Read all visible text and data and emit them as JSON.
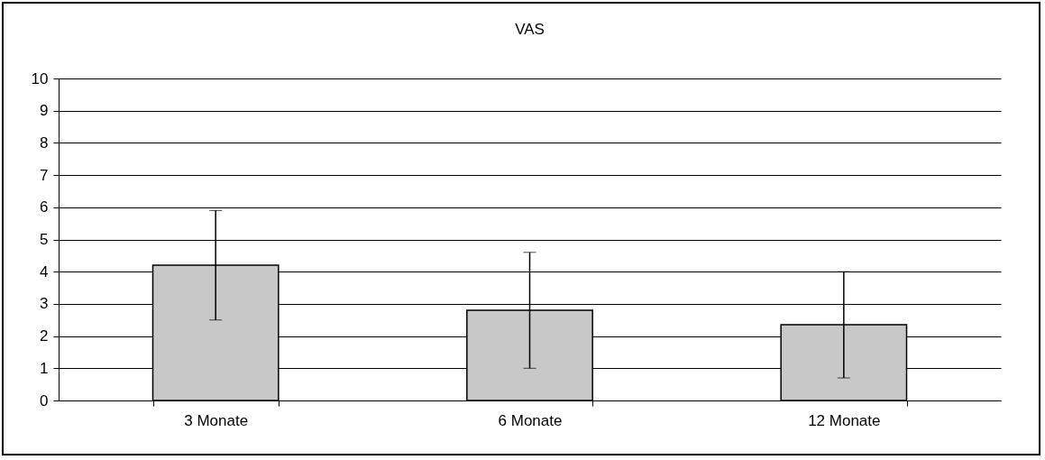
{
  "chart_data": {
    "type": "bar",
    "title": "VAS",
    "categories": [
      "3 Monate",
      "6 Monate",
      "12 Monate"
    ],
    "values": [
      4.2,
      2.8,
      2.35
    ],
    "errors": [
      1.7,
      1.8,
      1.65
    ],
    "color": "#c8c8c8",
    "ylim": [
      0,
      10
    ],
    "yticks": [
      0,
      1,
      2,
      3,
      4,
      5,
      6,
      7,
      8,
      9,
      10
    ],
    "grid": "y"
  }
}
